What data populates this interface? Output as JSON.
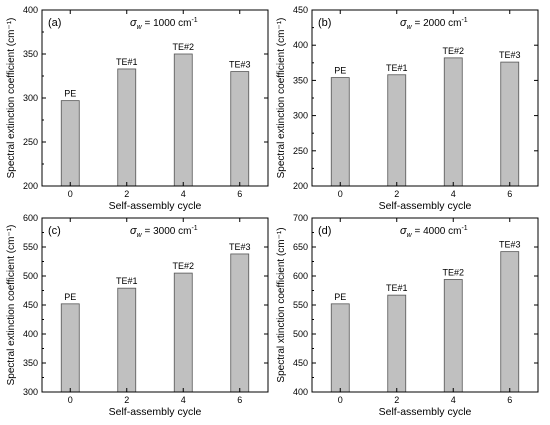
{
  "chart_data": [
    {
      "type": "bar",
      "panel_label": "(a)",
      "annotation": {
        "sym": "σ",
        "sub": "w",
        "text": " = 1000 cm",
        "sup": "-1"
      },
      "categories": [
        "0",
        "2",
        "4",
        "6"
      ],
      "values": [
        297,
        333,
        350,
        330
      ],
      "bar_labels": [
        "PE",
        "TE#1",
        "TE#2",
        "TE#3"
      ],
      "xlabel": "Self-assembly cycle",
      "ylabel": "Spectral extinction coefficient (cm⁻¹)",
      "ylim": [
        200,
        400
      ],
      "yticks": [
        200,
        250,
        300,
        350,
        400
      ],
      "grid": false
    },
    {
      "type": "bar",
      "panel_label": "(b)",
      "annotation": {
        "sym": "σ",
        "sub": "w",
        "text": " = 2000 cm",
        "sup": "-1"
      },
      "categories": [
        "0",
        "2",
        "4",
        "6"
      ],
      "values": [
        354,
        358,
        382,
        376
      ],
      "bar_labels": [
        "PE",
        "TE#1",
        "TE#2",
        "TE#3"
      ],
      "xlabel": "Self-assembly cycle",
      "ylabel": "Spectral extinction coefficient (cm⁻¹)",
      "ylim": [
        200,
        450
      ],
      "yticks": [
        200,
        250,
        300,
        350,
        400,
        450
      ],
      "grid": false
    },
    {
      "type": "bar",
      "panel_label": "(c)",
      "annotation": {
        "sym": "σ",
        "sub": "w",
        "text": " = 3000 cm",
        "sup": "-1"
      },
      "categories": [
        "0",
        "2",
        "4",
        "6"
      ],
      "values": [
        452,
        479,
        505,
        538
      ],
      "bar_labels": [
        "PE",
        "TE#1",
        "TE#2",
        "TE#3"
      ],
      "xlabel": "Self-assembly cycle",
      "ylabel": "Spectral extinction coefficient (cm⁻¹)",
      "ylim": [
        300,
        600
      ],
      "yticks": [
        300,
        350,
        400,
        450,
        500,
        550,
        600
      ],
      "grid": false
    },
    {
      "type": "bar",
      "panel_label": "(d)",
      "annotation": {
        "sym": "σ",
        "sub": "w",
        "text": " = 4000 cm",
        "sup": "-1"
      },
      "categories": [
        "0",
        "2",
        "4",
        "6"
      ],
      "values": [
        552,
        567,
        594,
        642
      ],
      "bar_labels": [
        "PE",
        "TE#1",
        "TE#2",
        "TE#3"
      ],
      "xlabel": "Self-assembly cycle",
      "ylabel": "Spectral xtinction coefficient (cm⁻¹)",
      "ylim": [
        400,
        700
      ],
      "yticks": [
        400,
        450,
        500,
        550,
        600,
        650,
        700
      ],
      "grid": false
    }
  ],
  "style": {
    "bar_fill": "#c0c0c0",
    "bar_stroke": "#555555",
    "axis_color": "#000000"
  }
}
